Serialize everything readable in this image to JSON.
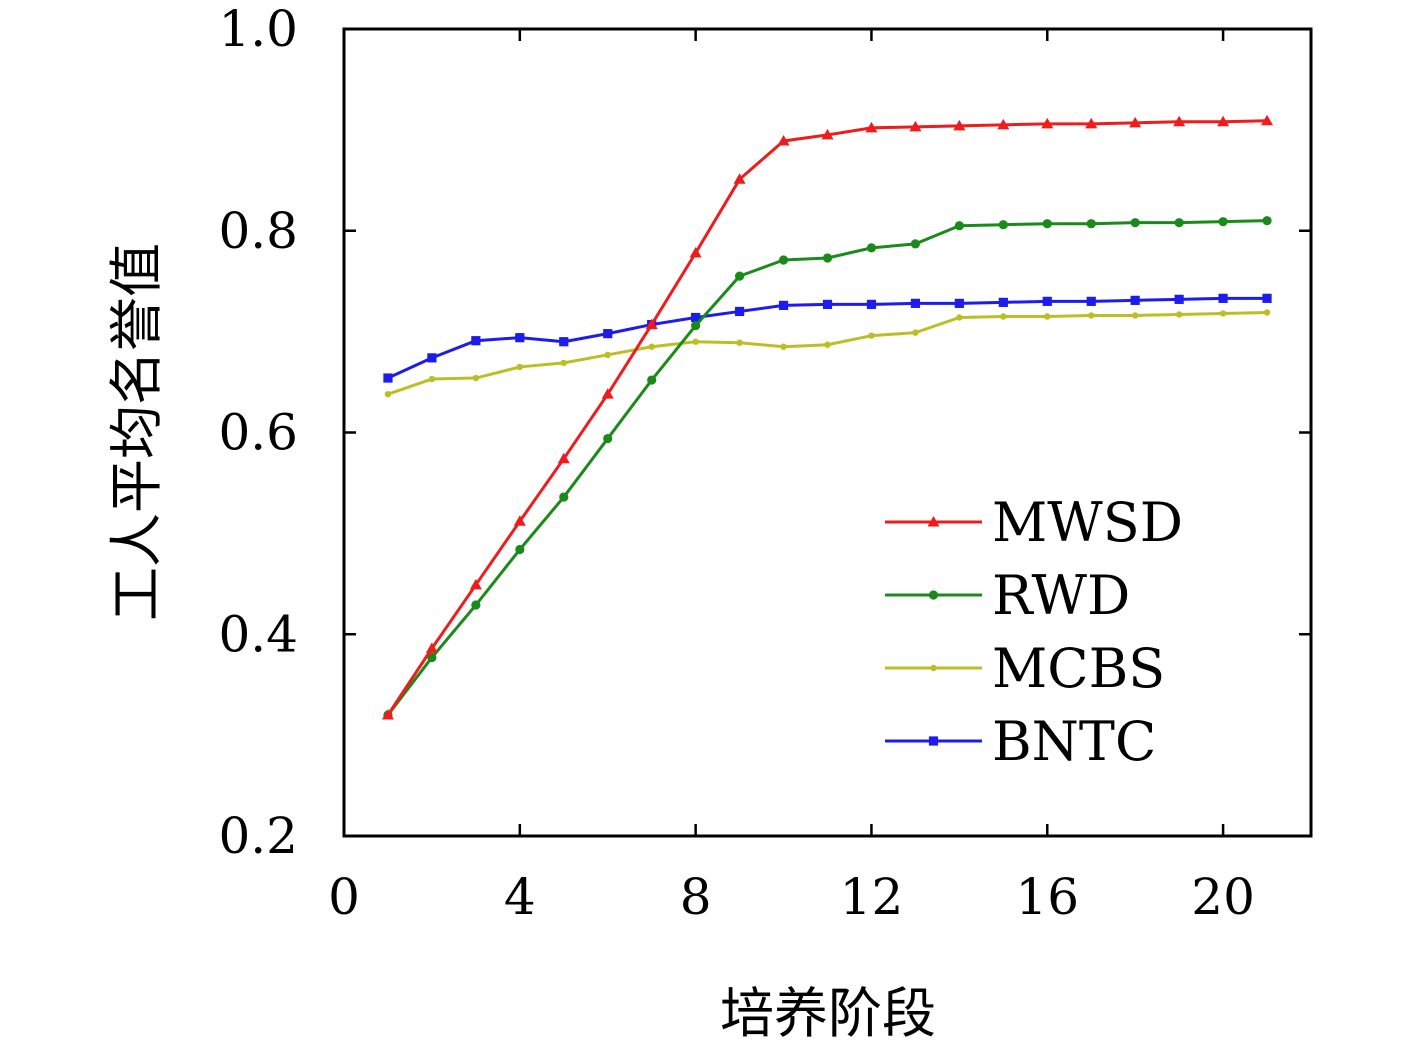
{
  "chart_data": {
    "type": "line",
    "title": "",
    "xlabel": "培养阶段",
    "ylabel": "工人平均名誉值",
    "xlim": [
      0,
      22
    ],
    "ylim": [
      0.2,
      1.0
    ],
    "xticks": [
      0,
      4,
      8,
      12,
      16,
      20
    ],
    "yticks": [
      0.2,
      0.4,
      0.6,
      0.8,
      1.0
    ],
    "ytick_labels": [
      "0.2",
      "0.4",
      "0.6",
      "0.8",
      "1.0"
    ],
    "grid": false,
    "legend_position": "bottom-right",
    "x": [
      1,
      2,
      3,
      4,
      5,
      6,
      7,
      8,
      9,
      10,
      11,
      12,
      13,
      14,
      15,
      16,
      17,
      18,
      19,
      20,
      21
    ],
    "series": [
      {
        "name": "MWSD",
        "color": "#ee1c1c",
        "marker": "triangle",
        "values": [
          0.32,
          0.386,
          0.449,
          0.512,
          0.574,
          0.638,
          0.707,
          0.778,
          0.851,
          0.889,
          0.895,
          0.902,
          0.903,
          0.904,
          0.905,
          0.906,
          0.906,
          0.907,
          0.908,
          0.908,
          0.909
        ]
      },
      {
        "name": "RWD",
        "color": "#1a8a1a",
        "marker": "circle",
        "values": [
          0.32,
          0.377,
          0.429,
          0.484,
          0.536,
          0.594,
          0.652,
          0.706,
          0.755,
          0.771,
          0.773,
          0.783,
          0.787,
          0.805,
          0.806,
          0.807,
          0.807,
          0.808,
          0.808,
          0.809,
          0.81
        ]
      },
      {
        "name": "MCBS",
        "color": "#bdbd26",
        "marker": "dot",
        "values": [
          0.638,
          0.653,
          0.654,
          0.665,
          0.669,
          0.677,
          0.685,
          0.69,
          0.689,
          0.685,
          0.687,
          0.696,
          0.699,
          0.714,
          0.715,
          0.715,
          0.716,
          0.716,
          0.717,
          0.718,
          0.719
        ]
      },
      {
        "name": "BNTC",
        "color": "#1c1cee",
        "marker": "square",
        "values": [
          0.654,
          0.674,
          0.691,
          0.694,
          0.69,
          0.698,
          0.707,
          0.714,
          0.72,
          0.726,
          0.727,
          0.727,
          0.728,
          0.728,
          0.729,
          0.73,
          0.73,
          0.731,
          0.732,
          0.733,
          0.733
        ]
      }
    ]
  }
}
